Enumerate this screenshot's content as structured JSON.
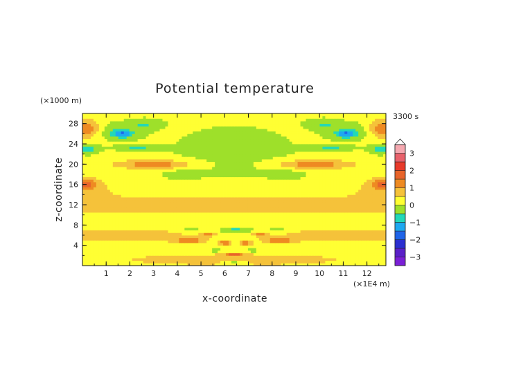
{
  "chart_data": {
    "type": "heatmap",
    "title": "Potential temperature",
    "time_label": "3300 s",
    "xlabel": "x-coordinate",
    "ylabel": "z-coordinate",
    "x_unit": "(×1E4 m)",
    "y_unit": "(×1000 m)",
    "xlim": [
      0,
      12.8
    ],
    "ylim": [
      0,
      30
    ],
    "x_ticks": [
      1,
      2,
      3,
      4,
      5,
      6,
      7,
      8,
      9,
      10,
      11,
      12
    ],
    "y_ticks": [
      4,
      8,
      12,
      16,
      20,
      24,
      28
    ],
    "colorbar": {
      "levels": [
        {
          "lo": -3.5,
          "hi": -3.0,
          "color": "#7a1fd6"
        },
        {
          "lo": -3.0,
          "hi": -2.5,
          "color": "#5a20c8"
        },
        {
          "lo": -2.5,
          "hi": -2.0,
          "color": "#2b2fd0"
        },
        {
          "lo": -2.0,
          "hi": -1.5,
          "color": "#1f64e8"
        },
        {
          "lo": -1.5,
          "hi": -1.0,
          "color": "#1ea8f0"
        },
        {
          "lo": -1.0,
          "hi": -0.5,
          "color": "#22d8b8"
        },
        {
          "lo": -0.5,
          "hi": 0.0,
          "color": "#9ee02a"
        },
        {
          "lo": 0.0,
          "hi": 0.5,
          "color": "#ffff33"
        },
        {
          "lo": 0.5,
          "hi": 1.0,
          "color": "#f5c23a"
        },
        {
          "lo": 1.0,
          "hi": 1.5,
          "color": "#ee8a22"
        },
        {
          "lo": 1.5,
          "hi": 2.0,
          "color": "#e8642a"
        },
        {
          "lo": 2.0,
          "hi": 2.5,
          "color": "#e83a2a"
        },
        {
          "lo": 2.5,
          "hi": 3.0,
          "color": "#e8606a"
        },
        {
          "lo": 3.0,
          "hi": 3.5,
          "color": "#f5a8b0"
        }
      ],
      "tick_labels": [
        "3",
        "2",
        "1",
        "0",
        "−1",
        "−2",
        "−3"
      ],
      "tick_values": [
        3,
        2,
        1,
        0,
        -1,
        -2,
        -3
      ]
    },
    "field": {
      "background": 0.2,
      "features": [
        {
          "x": 6.4,
          "z": 22.5,
          "w": 4.0,
          "h": 8.0,
          "v": -0.3
        },
        {
          "x": 3.2,
          "z": 12.0,
          "w": 4.5,
          "h": 1.6,
          "v": 0.6
        },
        {
          "x": 9.6,
          "z": 12.0,
          "w": 4.5,
          "h": 1.6,
          "v": 0.6
        },
        {
          "x": 1.5,
          "z": 6.0,
          "w": 3.5,
          "h": 1.5,
          "v": 0.55
        },
        {
          "x": 11.3,
          "z": 6.0,
          "w": 3.5,
          "h": 1.5,
          "v": 0.55
        },
        {
          "x": 6.4,
          "z": 1.2,
          "w": 6.0,
          "h": 1.5,
          "v": 0.5
        },
        {
          "x": 0.5,
          "z": 14.0,
          "w": 1.0,
          "h": 3.0,
          "v": 0.5
        },
        {
          "x": 12.3,
          "z": 14.0,
          "w": 1.0,
          "h": 3.0,
          "v": 0.5
        },
        {
          "x": 0.15,
          "z": 27.0,
          "w": 0.6,
          "h": 1.8,
          "v": 1.4
        },
        {
          "x": 12.65,
          "z": 27.0,
          "w": 0.6,
          "h": 1.8,
          "v": 1.4
        },
        {
          "x": 0.15,
          "z": 16.2,
          "w": 0.5,
          "h": 1.0,
          "v": 1.3
        },
        {
          "x": 12.65,
          "z": 16.2,
          "w": 0.5,
          "h": 1.0,
          "v": 1.3
        },
        {
          "x": 0.2,
          "z": 23.0,
          "w": 0.5,
          "h": 1.0,
          "v": -0.9
        },
        {
          "x": 12.6,
          "z": 23.0,
          "w": 0.5,
          "h": 1.0,
          "v": -0.9
        },
        {
          "x": 1.3,
          "z": 26.5,
          "w": 1.2,
          "h": 1.8,
          "v": -0.5
        },
        {
          "x": 11.5,
          "z": 26.5,
          "w": 1.2,
          "h": 1.8,
          "v": -0.5
        },
        {
          "x": 1.7,
          "z": 26.0,
          "w": 0.4,
          "h": 0.7,
          "v": -1.4
        },
        {
          "x": 11.1,
          "z": 26.0,
          "w": 0.4,
          "h": 0.7,
          "v": -1.4
        },
        {
          "x": 2.6,
          "z": 28.0,
          "w": 0.7,
          "h": 1.0,
          "v": -0.6
        },
        {
          "x": 10.2,
          "z": 28.0,
          "w": 0.7,
          "h": 1.0,
          "v": -0.6
        },
        {
          "x": 3.0,
          "z": 20.0,
          "w": 1.5,
          "h": 0.9,
          "v": 1.3
        },
        {
          "x": 9.8,
          "z": 20.0,
          "w": 1.5,
          "h": 0.9,
          "v": 1.3
        },
        {
          "x": 2.3,
          "z": 23.2,
          "w": 0.9,
          "h": 0.6,
          "v": -0.7
        },
        {
          "x": 10.5,
          "z": 23.2,
          "w": 0.9,
          "h": 0.6,
          "v": -0.7
        },
        {
          "x": 4.2,
          "z": 18.0,
          "w": 0.6,
          "h": 0.7,
          "v": -0.6
        },
        {
          "x": 8.6,
          "z": 18.0,
          "w": 0.6,
          "h": 0.7,
          "v": -0.6
        },
        {
          "x": 4.5,
          "z": 5.0,
          "w": 0.6,
          "h": 0.5,
          "v": 1.3
        },
        {
          "x": 8.3,
          "z": 5.0,
          "w": 0.6,
          "h": 0.5,
          "v": 1.3
        },
        {
          "x": 4.6,
          "z": 7.3,
          "w": 0.3,
          "h": 0.4,
          "v": -0.7
        },
        {
          "x": 8.2,
          "z": 7.3,
          "w": 0.3,
          "h": 0.4,
          "v": -0.7
        },
        {
          "x": 6.5,
          "z": 7.0,
          "w": 0.7,
          "h": 0.4,
          "v": -1.2
        },
        {
          "x": 6.0,
          "z": 4.5,
          "w": 0.25,
          "h": 0.5,
          "v": 1.2
        },
        {
          "x": 6.9,
          "z": 4.5,
          "w": 0.25,
          "h": 0.5,
          "v": 1.2
        },
        {
          "x": 5.6,
          "z": 3.0,
          "w": 0.25,
          "h": 0.4,
          "v": -0.7
        },
        {
          "x": 7.2,
          "z": 3.0,
          "w": 0.25,
          "h": 0.4,
          "v": -0.7
        },
        {
          "x": 6.4,
          "z": 2.2,
          "w": 0.4,
          "h": 0.3,
          "v": 1.3
        },
        {
          "x": 6.4,
          "z": 0.6,
          "w": 0.5,
          "h": 0.35,
          "v": -0.8
        },
        {
          "x": 5.3,
          "z": 6.2,
          "w": 0.25,
          "h": 0.35,
          "v": 1.1
        },
        {
          "x": 7.5,
          "z": 6.2,
          "w": 0.25,
          "h": 0.35,
          "v": 1.1
        }
      ]
    }
  }
}
